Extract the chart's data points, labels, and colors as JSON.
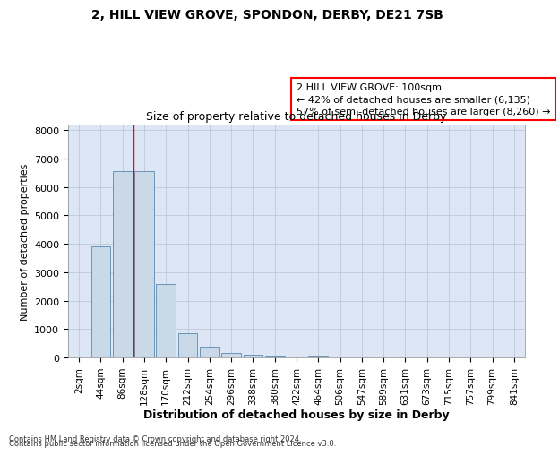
{
  "title1": "2, HILL VIEW GROVE, SPONDON, DERBY, DE21 7SB",
  "title2": "Size of property relative to detached houses in Derby",
  "xlabel": "Distribution of detached houses by size in Derby",
  "ylabel": "Number of detached properties",
  "bar_color": "#c9d9e8",
  "bar_edge_color": "#5a8ab0",
  "background_color": "#dce6f5",
  "categories": [
    "2sqm",
    "44sqm",
    "86sqm",
    "128sqm",
    "170sqm",
    "212sqm",
    "254sqm",
    "296sqm",
    "338sqm",
    "380sqm",
    "422sqm",
    "464sqm",
    "506sqm",
    "547sqm",
    "589sqm",
    "631sqm",
    "673sqm",
    "715sqm",
    "757sqm",
    "799sqm",
    "841sqm"
  ],
  "values": [
    20,
    3900,
    6550,
    6550,
    2600,
    850,
    380,
    150,
    100,
    60,
    10,
    50,
    0,
    0,
    0,
    0,
    0,
    0,
    0,
    0,
    0
  ],
  "ylim": [
    0,
    8200
  ],
  "yticks": [
    0,
    1000,
    2000,
    3000,
    4000,
    5000,
    6000,
    7000,
    8000
  ],
  "red_line_x": 2.5,
  "annotation_text": "2 HILL VIEW GROVE: 100sqm\n← 42% of detached houses are smaller (6,135)\n57% of semi-detached houses are larger (8,260) →",
  "footer1": "Contains HM Land Registry data © Crown copyright and database right 2024.",
  "footer2": "Contains public sector information licensed under the Open Government Licence v3.0.",
  "grid_color": "#b8c4d8"
}
